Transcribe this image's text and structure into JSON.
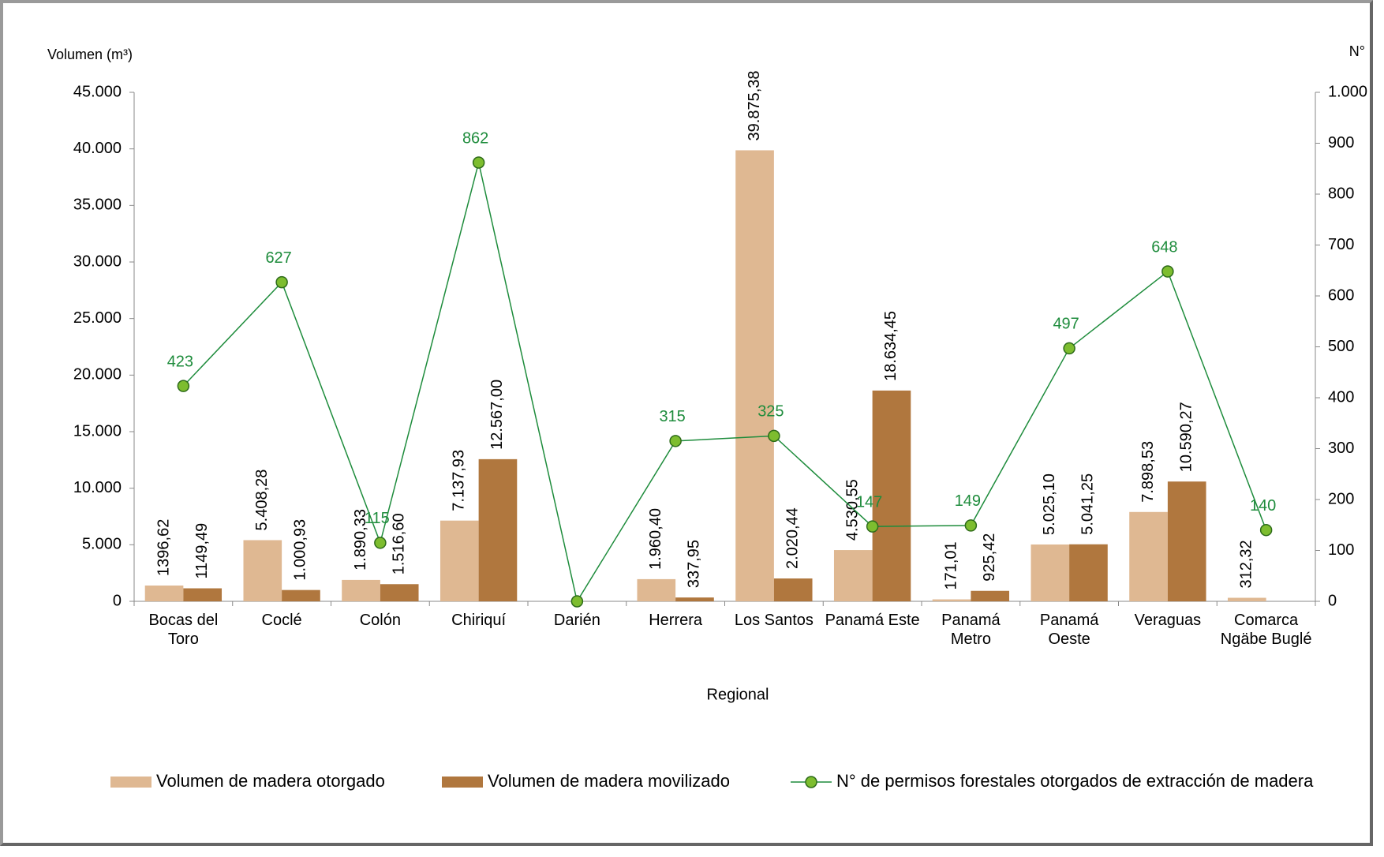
{
  "chart_data": {
    "type": "bar-line",
    "y_label": "Volumen (m³)",
    "y2_label": "N°",
    "x_label": "Regional",
    "categories": [
      "Bocas del Toro",
      "Coclé",
      "Colón",
      "Chiriquí",
      "Darién",
      "Herrera",
      "Los Santos",
      "Panamá Este",
      "Panamá Metro",
      "Panamá Oeste",
      "Veraguas",
      "Comarca Ngäbe Buglé"
    ],
    "series": [
      {
        "name": "Volumen de madera otorgado",
        "type": "bar",
        "color": "#dfb892",
        "values": [
          1396.62,
          5408.28,
          1890.33,
          7137.93,
          null,
          1960.4,
          39875.38,
          4530.55,
          171.01,
          5025.1,
          7898.53,
          312.32
        ],
        "value_labels": [
          "1396,62",
          "5.408,28",
          "1.890,33",
          "7.137,93",
          null,
          "1.960,40",
          "39.875,38",
          "4.530,55",
          "171,01",
          "5.025,10",
          "7.898,53",
          "312,32"
        ]
      },
      {
        "name": "Volumen de madera movilizado",
        "type": "bar",
        "color": "#b0773e",
        "values": [
          1149.49,
          1000.93,
          1516.6,
          12567.0,
          null,
          337.95,
          2020.44,
          18634.45,
          925.42,
          5041.25,
          10590.27,
          null
        ],
        "value_labels": [
          "1149,49",
          "1.000,93",
          "1.516,60",
          "12.567,00",
          null,
          "337,95",
          "2.020,44",
          "18.634,45",
          "925,42",
          "5.041,25",
          "10.590,27",
          null
        ]
      },
      {
        "name": "N° de permisos  forestales otorgados de extracción de madera",
        "type": "line",
        "axis": "y2",
        "color": "#1e8c3c",
        "values": [
          423,
          627,
          115,
          862,
          0,
          315,
          325,
          147,
          149,
          497,
          648,
          140
        ],
        "value_labels": [
          "423",
          "627",
          "115",
          "862",
          null,
          "315",
          "325",
          "147",
          "149",
          "497",
          "648",
          "140"
        ]
      }
    ],
    "ylim": [
      0,
      45000
    ],
    "yticks": [
      0,
      {
        "value": 5000,
        "label": "5.000"
      },
      {
        "value": 10000,
        "label": "10.000"
      },
      {
        "value": 15000,
        "label": "15.000"
      },
      {
        "value": 20000,
        "label": "20.000"
      },
      {
        "value": 25000,
        "label": "25.000"
      },
      {
        "value": 30000,
        "label": "30.000"
      },
      {
        "value": 35000,
        "label": "35.000"
      },
      {
        "value": 40000,
        "label": "40.000"
      },
      {
        "value": 45000,
        "label": "45.000"
      }
    ],
    "y2lim": [
      0,
      1000
    ],
    "y2ticks": [
      0,
      100,
      200,
      300,
      400,
      500,
      600,
      700,
      800,
      900,
      {
        "value": 1000,
        "label": "1.000"
      }
    ],
    "legend": "bottom"
  }
}
